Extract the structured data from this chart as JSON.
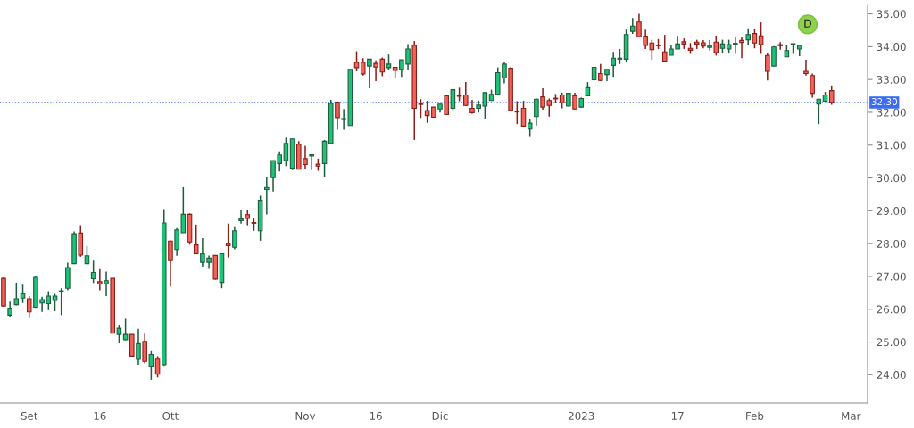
{
  "chart_data": {
    "type": "candlestick",
    "categories": [
      null,
      null,
      null,
      null,
      "Set",
      null,
      null,
      null,
      null,
      null,
      null,
      null,
      null,
      null,
      null,
      "16",
      null,
      null,
      null,
      null,
      null,
      null,
      null,
      null,
      null,
      null,
      "Ott",
      null,
      null,
      null,
      null,
      null,
      null,
      null,
      null,
      null,
      null,
      null,
      null,
      null,
      null,
      null,
      null,
      null,
      null,
      null,
      null,
      "Nov",
      null,
      null,
      null,
      null,
      null,
      null,
      null,
      null,
      null,
      null,
      "16",
      null,
      null,
      null,
      null,
      null,
      null,
      null,
      null,
      null,
      "Dic",
      null,
      null,
      null,
      null,
      null,
      null,
      null,
      null,
      null,
      null,
      null,
      null,
      null,
      null,
      null,
      null,
      null,
      null,
      null,
      null,
      null,
      "2023",
      null,
      null,
      null,
      null,
      null,
      null,
      null,
      null,
      null,
      null,
      null,
      null,
      null,
      null,
      "17",
      null,
      null,
      null,
      null,
      null,
      null,
      null,
      null,
      null,
      null,
      null,
      "Feb",
      null,
      null,
      null,
      null,
      null,
      null,
      null,
      null,
      null,
      null,
      null,
      null,
      null,
      null,
      "Mar",
      null,
      null
    ],
    "ohlc": [
      [
        26.94,
        26.97,
        26.08,
        26.1
      ],
      [
        25.82,
        26.23,
        25.75,
        26.03
      ],
      [
        26.14,
        26.81,
        26.12,
        26.32
      ],
      [
        26.34,
        26.75,
        26.19,
        26.47
      ],
      [
        26.32,
        26.4,
        25.73,
        25.92
      ],
      [
        26.06,
        27.02,
        26.04,
        26.97
      ],
      [
        26.19,
        26.38,
        25.92,
        26.29
      ],
      [
        26.17,
        26.55,
        25.97,
        26.4
      ],
      [
        26.27,
        26.47,
        25.94,
        26.4
      ],
      [
        26.53,
        26.64,
        25.82,
        26.56
      ],
      [
        26.64,
        27.42,
        26.58,
        27.27
      ],
      [
        27.39,
        28.37,
        27.39,
        28.3
      ],
      [
        28.32,
        28.56,
        27.6,
        27.65
      ],
      [
        27.39,
        27.93,
        27.39,
        27.63
      ],
      [
        26.93,
        27.48,
        26.8,
        27.12
      ],
      [
        26.84,
        27.22,
        26.58,
        26.77
      ],
      [
        26.77,
        27.15,
        26.4,
        26.87
      ],
      [
        26.94,
        26.94,
        25.27,
        25.27
      ],
      [
        25.23,
        25.53,
        24.96,
        25.42
      ],
      [
        25.07,
        25.71,
        25.05,
        25.23
      ],
      [
        25.23,
        25.23,
        24.57,
        24.57
      ],
      [
        24.47,
        25.4,
        24.31,
        24.95
      ],
      [
        25.02,
        25.25,
        24.35,
        24.41
      ],
      [
        24.24,
        24.72,
        23.85,
        24.62
      ],
      [
        24.48,
        24.57,
        23.92,
        24.02
      ],
      [
        24.31,
        29.05,
        24.25,
        28.63
      ],
      [
        28.08,
        28.09,
        26.69,
        27.48
      ],
      [
        27.82,
        28.47,
        27.63,
        28.42
      ],
      [
        28.33,
        29.72,
        28.33,
        28.89
      ],
      [
        28.89,
        28.92,
        27.97,
        28.05
      ],
      [
        27.96,
        28.58,
        27.69,
        27.69
      ],
      [
        27.43,
        28.17,
        27.3,
        27.69
      ],
      [
        27.43,
        27.64,
        27.23,
        27.56
      ],
      [
        27.64,
        27.64,
        26.9,
        26.92
      ],
      [
        26.82,
        27.69,
        26.64,
        27.69
      ],
      [
        28.0,
        28.61,
        27.58,
        27.94
      ],
      [
        27.89,
        28.5,
        27.83,
        28.39
      ],
      [
        28.7,
        29.02,
        28.61,
        28.75
      ],
      [
        28.88,
        29.02,
        28.56,
        28.77
      ],
      [
        28.64,
        28.76,
        28.39,
        28.62
      ],
      [
        28.39,
        29.46,
        28.09,
        29.32
      ],
      [
        29.65,
        30.03,
        28.89,
        29.71
      ],
      [
        30.01,
        30.53,
        29.59,
        30.53
      ],
      [
        30.44,
        30.81,
        30.2,
        30.7
      ],
      [
        30.53,
        31.23,
        30.36,
        31.05
      ],
      [
        30.3,
        31.19,
        30.24,
        31.19
      ],
      [
        31.03,
        31.12,
        30.27,
        30.27
      ],
      [
        30.59,
        30.98,
        30.29,
        30.41
      ],
      [
        30.67,
        30.71,
        30.24,
        30.71
      ],
      [
        30.42,
        30.59,
        30.22,
        30.36
      ],
      [
        30.44,
        31.16,
        30.04,
        31.12
      ],
      [
        31.05,
        32.38,
        31.05,
        32.27
      ],
      [
        32.31,
        32.31,
        31.47,
        31.84
      ],
      [
        31.78,
        32.1,
        31.47,
        31.81
      ],
      [
        31.6,
        33.31,
        31.6,
        33.31
      ],
      [
        33.52,
        33.86,
        33.25,
        33.36
      ],
      [
        33.52,
        33.65,
        33.12,
        33.17
      ],
      [
        33.41,
        33.62,
        32.73,
        33.62
      ],
      [
        33.49,
        33.58,
        32.95,
        33.38
      ],
      [
        33.62,
        33.67,
        33.1,
        33.23
      ],
      [
        33.36,
        33.76,
        33.28,
        33.47
      ],
      [
        33.37,
        33.37,
        33.04,
        33.28
      ],
      [
        33.31,
        33.6,
        33.08,
        33.6
      ],
      [
        33.47,
        34.08,
        33.3,
        33.93
      ],
      [
        34.04,
        34.17,
        31.16,
        32.12
      ],
      [
        32.27,
        32.4,
        31.83,
        32.24
      ],
      [
        32.05,
        32.35,
        31.68,
        31.9
      ],
      [
        32.16,
        32.16,
        31.85,
        31.85
      ],
      [
        32.1,
        32.25,
        31.99,
        32.25
      ],
      [
        32.5,
        32.5,
        31.93,
        31.93
      ],
      [
        32.12,
        32.69,
        32.07,
        32.69
      ],
      [
        32.51,
        32.75,
        32.34,
        32.49
      ],
      [
        32.53,
        32.92,
        32.19,
        32.21
      ],
      [
        32.12,
        32.38,
        31.96,
        31.99
      ],
      [
        32.12,
        32.36,
        31.99,
        32.22
      ],
      [
        32.19,
        32.6,
        31.79,
        32.6
      ],
      [
        32.36,
        32.69,
        32.36,
        32.55
      ],
      [
        32.55,
        33.37,
        32.55,
        33.21
      ],
      [
        33.05,
        33.53,
        32.88,
        33.47
      ],
      [
        33.34,
        33.38,
        32.06,
        32.06
      ],
      [
        32.03,
        32.34,
        31.64,
        32.01
      ],
      [
        32.12,
        32.35,
        31.58,
        31.58
      ],
      [
        31.49,
        31.81,
        31.25,
        31.67
      ],
      [
        31.87,
        32.42,
        31.6,
        32.4
      ],
      [
        32.47,
        32.73,
        32.08,
        32.16
      ],
      [
        32.36,
        32.42,
        31.87,
        32.21
      ],
      [
        32.43,
        32.56,
        32.28,
        32.41
      ],
      [
        32.53,
        32.6,
        32.12,
        32.29
      ],
      [
        32.19,
        32.6,
        32.18,
        32.58
      ],
      [
        32.5,
        32.6,
        32.09,
        32.1
      ],
      [
        32.16,
        32.45,
        32.14,
        32.42
      ],
      [
        32.5,
        32.92,
        32.5,
        32.75
      ],
      [
        32.99,
        33.37,
        32.97,
        33.37
      ],
      [
        33.18,
        33.47,
        32.95,
        32.97
      ],
      [
        33.15,
        33.31,
        32.95,
        33.31
      ],
      [
        33.43,
        33.84,
        33.08,
        33.65
      ],
      [
        33.62,
        33.93,
        33.47,
        33.65
      ],
      [
        33.62,
        34.52,
        33.54,
        34.37
      ],
      [
        34.47,
        34.87,
        34.39,
        34.63
      ],
      [
        34.75,
        35.0,
        34.28,
        34.3
      ],
      [
        34.32,
        34.52,
        33.93,
        34.04
      ],
      [
        34.11,
        34.21,
        33.6,
        33.91
      ],
      [
        34.04,
        34.23,
        33.93,
        34.03
      ],
      [
        33.84,
        34.36,
        33.54,
        33.56
      ],
      [
        33.74,
        34.06,
        33.74,
        33.93
      ],
      [
        33.93,
        34.33,
        33.93,
        34.08
      ],
      [
        34.15,
        34.25,
        33.93,
        34.08
      ],
      [
        33.95,
        34.11,
        33.78,
        33.89
      ],
      [
        34.14,
        34.21,
        33.93,
        34.08
      ],
      [
        34.12,
        34.2,
        33.95,
        34.02
      ],
      [
        33.98,
        34.2,
        33.89,
        34.03
      ],
      [
        34.14,
        34.34,
        33.73,
        33.82
      ],
      [
        33.95,
        34.21,
        33.79,
        34.08
      ],
      [
        33.93,
        34.21,
        33.79,
        34.06
      ],
      [
        34.08,
        34.3,
        33.78,
        34.1
      ],
      [
        34.19,
        34.28,
        33.65,
        34.13
      ],
      [
        34.21,
        34.56,
        34.04,
        34.37
      ],
      [
        34.4,
        34.54,
        33.95,
        34.11
      ],
      [
        34.33,
        34.74,
        33.78,
        34.06
      ],
      [
        33.73,
        33.82,
        32.97,
        33.25
      ],
      [
        33.41,
        34.02,
        33.41,
        33.99
      ],
      [
        34.06,
        34.14,
        33.91,
        34.03
      ],
      [
        33.69,
        34.06,
        33.69,
        33.88
      ],
      [
        34.06,
        34.09,
        33.78,
        34.09
      ],
      [
        33.93,
        34.04,
        33.71,
        34.04
      ],
      [
        33.25,
        33.6,
        33.12,
        33.18
      ],
      [
        33.12,
        33.18,
        32.45,
        32.58
      ],
      [
        32.25,
        32.4,
        31.64,
        32.4
      ],
      [
        32.34,
        32.62,
        32.34,
        32.53
      ],
      [
        32.66,
        32.82,
        32.23,
        32.3
      ],
      null,
      null,
      null,
      null,
      null
    ],
    "ylim": [
      23.14,
      35.26
    ],
    "yticks": [
      {
        "value": 24,
        "label": "24.00"
      },
      {
        "value": 25,
        "label": "25.00"
      },
      {
        "value": 26,
        "label": "26.00"
      },
      {
        "value": 27,
        "label": "27.00"
      },
      {
        "value": 28,
        "label": "28.00"
      },
      {
        "value": 29,
        "label": "29.00"
      },
      {
        "value": 30,
        "label": "30.00"
      },
      {
        "value": 31,
        "label": "31.00"
      },
      {
        "value": 32,
        "label": "32.00"
      },
      {
        "value": 33,
        "label": "33.00"
      },
      {
        "value": 34,
        "label": "34.00"
      },
      {
        "value": 35,
        "label": "35.00"
      }
    ],
    "ref_lines": [
      {
        "axis": "y",
        "value": 32.3,
        "label": "32.30",
        "color": "#3b6cf0",
        "line_style": "dotted"
      }
    ],
    "annotations": [
      "D"
    ],
    "grid": false,
    "legend": false
  }
}
